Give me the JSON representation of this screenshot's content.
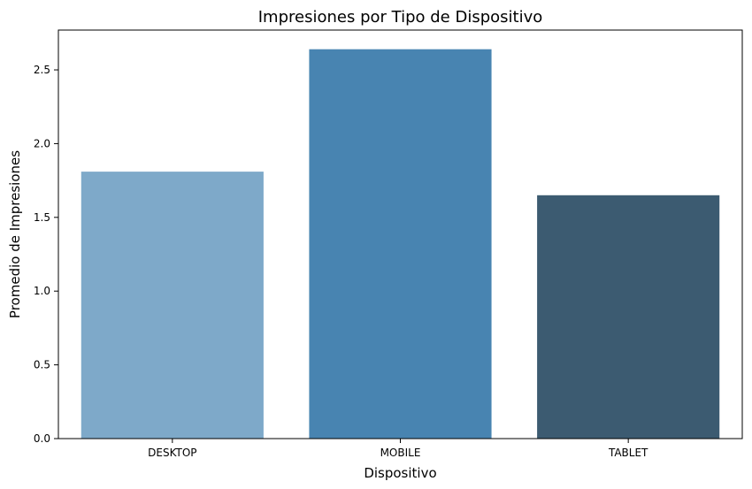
{
  "chart_data": {
    "type": "bar",
    "title": "Impresiones por Tipo de Dispositivo",
    "xlabel": "Dispositivo",
    "ylabel": "Promedio de Impresiones",
    "categories": [
      "DESKTOP",
      "MOBILE",
      "TABLET"
    ],
    "values": [
      1.81,
      2.64,
      1.65
    ],
    "colors": [
      "#7ea9c9",
      "#4884b1",
      "#3c5b71"
    ],
    "ylim": [
      0,
      2.77
    ],
    "yticks": [
      0.0,
      0.5,
      1.0,
      1.5,
      2.0,
      2.5
    ],
    "ytick_labels": [
      "0.0",
      "0.5",
      "1.0",
      "1.5",
      "2.0",
      "2.5"
    ],
    "grid": false,
    "legend": "none"
  }
}
